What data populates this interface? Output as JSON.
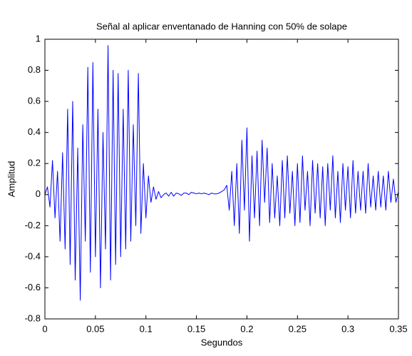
{
  "chart_data": {
    "type": "line",
    "title": "Señal al aplicar enventanado de Hanning con 50% de solape",
    "x_label": "Segundos",
    "y_label": "Amplitud",
    "xlim": [
      0,
      0.35
    ],
    "ylim": [
      -0.8,
      1
    ],
    "xticks": [
      0,
      0.05,
      0.1,
      0.15,
      0.2,
      0.25,
      0.3,
      0.35
    ],
    "yticks": [
      -0.8,
      -0.6,
      -0.4,
      -0.2,
      0,
      0.2,
      0.4,
      0.6,
      0.8,
      1
    ],
    "grid": false,
    "x": [
      0,
      0.0025,
      0.005,
      0.0075,
      0.01,
      0.0125,
      0.015,
      0.0175,
      0.02,
      0.0225,
      0.025,
      0.0275,
      0.03,
      0.0325,
      0.035,
      0.0375,
      0.04,
      0.0425,
      0.045,
      0.0475,
      0.05,
      0.0525,
      0.055,
      0.0575,
      0.06,
      0.0625,
      0.065,
      0.0675,
      0.07,
      0.0725,
      0.075,
      0.0775,
      0.08,
      0.0825,
      0.085,
      0.0875,
      0.09,
      0.0925,
      0.095,
      0.0975,
      0.1,
      0.1025,
      0.105,
      0.1075,
      0.11,
      0.1125,
      0.115,
      0.1175,
      0.12,
      0.1225,
      0.125,
      0.1275,
      0.13,
      0.1325,
      0.135,
      0.1375,
      0.14,
      0.1425,
      0.145,
      0.1475,
      0.15,
      0.1525,
      0.155,
      0.1575,
      0.16,
      0.1625,
      0.165,
      0.1675,
      0.17,
      0.1725,
      0.175,
      0.1775,
      0.18,
      0.1825,
      0.185,
      0.1875,
      0.19,
      0.1925,
      0.195,
      0.1975,
      0.2,
      0.2025,
      0.205,
      0.2075,
      0.21,
      0.2125,
      0.215,
      0.2175,
      0.22,
      0.2225,
      0.225,
      0.2275,
      0.23,
      0.2325,
      0.235,
      0.2375,
      0.24,
      0.2425,
      0.245,
      0.2475,
      0.25,
      0.2525,
      0.255,
      0.2575,
      0.26,
      0.2625,
      0.265,
      0.2675,
      0.27,
      0.2725,
      0.275,
      0.2775,
      0.28,
      0.2825,
      0.285,
      0.2875,
      0.29,
      0.2925,
      0.295,
      0.2975,
      0.3,
      0.3025,
      0.305,
      0.3075,
      0.31,
      0.3125,
      0.315,
      0.3175,
      0.32,
      0.3225,
      0.325,
      0.3275,
      0.33,
      0.3325,
      0.335,
      0.3375,
      0.34,
      0.3425,
      0.345,
      0.3475,
      0.35
    ],
    "series": [
      {
        "color": "#0000ff",
        "values": [
          0,
          0.05,
          -0.08,
          0.22,
          -0.15,
          0.15,
          -0.3,
          0.27,
          -0.35,
          0.55,
          -0.45,
          0.6,
          -0.55,
          0.3,
          -0.68,
          0.45,
          -0.3,
          0.82,
          -0.5,
          0.85,
          -0.4,
          0.55,
          -0.6,
          0.4,
          -0.35,
          0.96,
          -0.55,
          0.8,
          -0.45,
          0.78,
          -0.4,
          0.55,
          -0.35,
          0.8,
          -0.3,
          0.45,
          -0.2,
          0.78,
          -0.25,
          0.2,
          -0.15,
          0.12,
          -0.05,
          0.05,
          -0.03,
          0.02,
          -0.02,
          0,
          0.01,
          -0.01,
          0.015,
          -0.01,
          0.01,
          0.005,
          -0.005,
          0.01,
          0.01,
          0,
          0.015,
          0.01,
          0.005,
          0.01,
          0.005,
          0.01,
          0.005,
          0,
          0.01,
          0.005,
          0.005,
          0.01,
          0.02,
          0.03,
          0.06,
          -0.1,
          0.15,
          -0.2,
          0.2,
          -0.25,
          0.35,
          -0.1,
          0.43,
          -0.3,
          0.25,
          -0.15,
          0.28,
          -0.2,
          0.35,
          -0.05,
          0.3,
          -0.18,
          0.2,
          -0.15,
          0.12,
          -0.2,
          0.22,
          -0.15,
          0.25,
          -0.12,
          0.15,
          -0.2,
          0.2,
          -0.18,
          0.25,
          -0.1,
          0.15,
          -0.2,
          0.22,
          -0.12,
          0.2,
          -0.15,
          0.18,
          -0.2,
          0.2,
          -0.1,
          0.25,
          -0.15,
          0.15,
          -0.18,
          0.2,
          -0.1,
          0.18,
          -0.15,
          0.22,
          -0.12,
          0.15,
          -0.1,
          0.15,
          -0.12,
          0.2,
          -0.08,
          0.12,
          -0.1,
          0.15,
          -0.08,
          0.12,
          -0.1,
          0.15,
          -0.05,
          0.1,
          -0.05,
          0.02
        ]
      }
    ]
  }
}
